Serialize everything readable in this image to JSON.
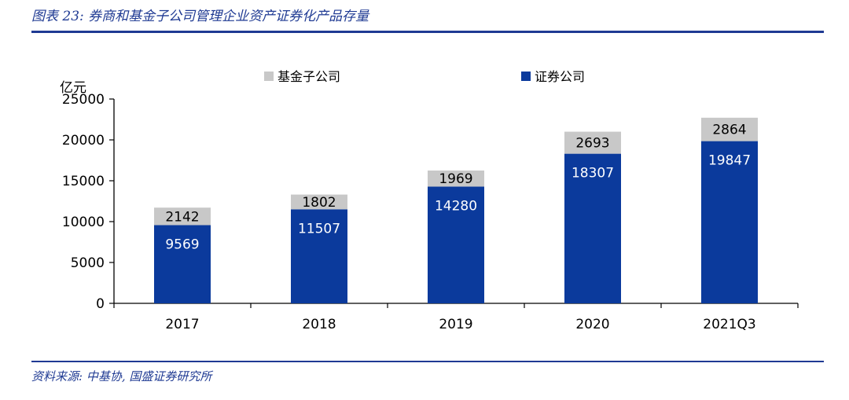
{
  "header": {
    "title": "图表 23:  券商和基金子公司管理企业资产证券化产品存量"
  },
  "footer": {
    "source": "资料来源:  中基协, 国盛证券研究所"
  },
  "colors": {
    "rule": "#1f3a93",
    "securities": "#0b3a9c",
    "fund": "#c8c8c8"
  },
  "chart_data": {
    "type": "bar",
    "stacked": true,
    "ylabel": "亿元",
    "ylim": [
      0,
      25000
    ],
    "yticks": [
      0,
      5000,
      10000,
      15000,
      20000,
      25000
    ],
    "categories": [
      "2017",
      "2018",
      "2019",
      "2020",
      "2021Q3"
    ],
    "series": [
      {
        "name": "证券公司",
        "values": [
          9569,
          11507,
          14280,
          18307,
          19847
        ],
        "color": "#0b3a9c"
      },
      {
        "name": "基金子公司",
        "values": [
          2142,
          1802,
          1969,
          2693,
          2864
        ],
        "color": "#c8c8c8"
      }
    ],
    "legend": [
      "基金子公司",
      "证券公司"
    ],
    "legend_position": "top"
  }
}
